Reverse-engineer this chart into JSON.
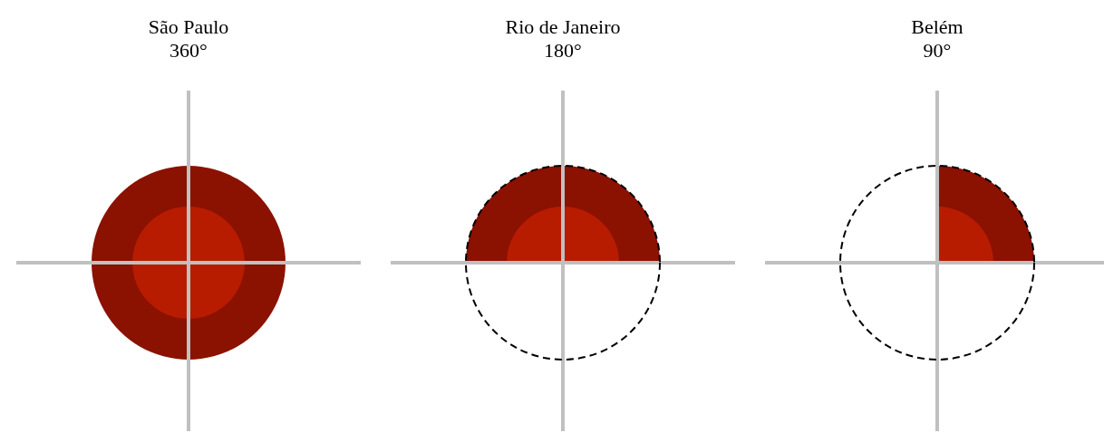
{
  "chart_data": [
    {
      "type": "other",
      "title": "São Paulo",
      "series": [
        {
          "color": "#8b1100",
          "values": [
            360
          ],
          "value_labels": [
            "360°"
          ]
        }
      ]
    },
    {
      "type": "other",
      "title": "Rio de Janeiro",
      "series": [
        {
          "color": "#8b1100",
          "values": [
            180
          ],
          "value_labels": [
            "180°"
          ]
        }
      ]
    },
    {
      "type": "other",
      "title": "Belém",
      "series": [
        {
          "color": "#8b1100",
          "values": [
            90
          ],
          "value_labels": [
            "90°"
          ]
        }
      ]
    }
  ]
}
